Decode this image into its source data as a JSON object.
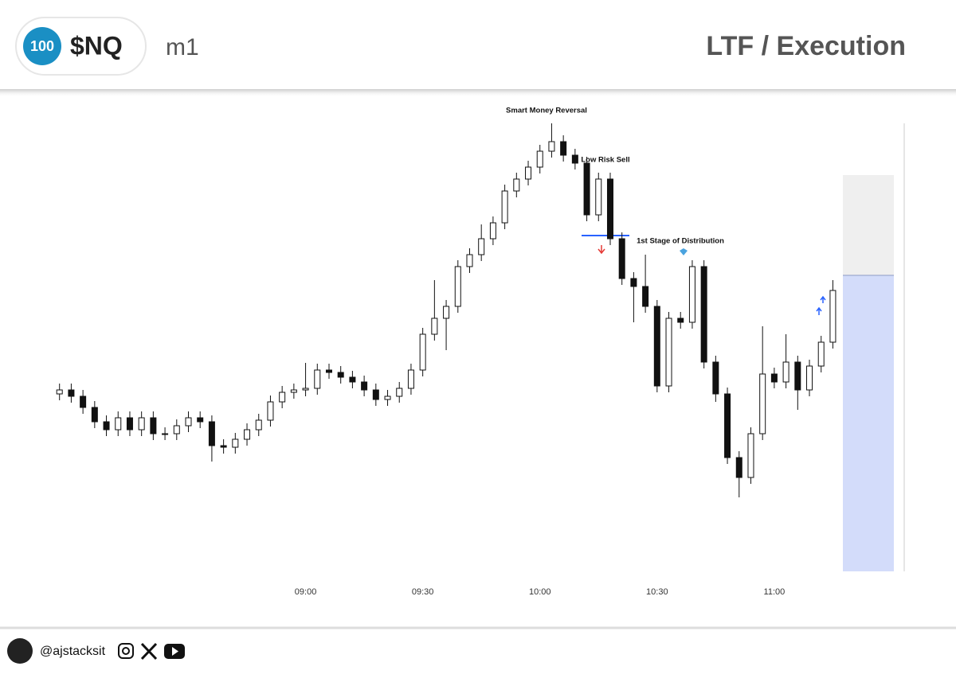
{
  "header": {
    "badge": "100",
    "symbol": "$NQ",
    "timeframe": "m1",
    "title": "LTF / Execution"
  },
  "chart_data": {
    "type": "candlestick",
    "x": [
      477,
      480,
      483,
      486,
      489,
      492,
      495,
      498,
      501,
      504,
      507,
      510,
      513,
      516,
      519,
      522,
      525,
      528,
      531,
      534,
      537,
      540,
      543,
      546,
      549,
      552,
      555,
      558,
      561,
      564,
      567,
      570,
      573,
      576,
      579,
      582,
      585,
      588,
      591,
      594,
      597,
      600,
      603,
      606,
      609,
      612,
      615,
      618,
      621,
      624,
      627,
      630,
      633,
      636,
      639,
      642,
      645,
      648,
      651,
      654,
      657,
      660,
      663,
      666,
      669,
      672,
      675
    ],
    "open": [
      225,
      230,
      222,
      208,
      190,
      180,
      195,
      180,
      195,
      175,
      175,
      185,
      195,
      190,
      160,
      158,
      168,
      180,
      192,
      215,
      227,
      230,
      232,
      255,
      252,
      246,
      240,
      230,
      218,
      222,
      232,
      255,
      300,
      320,
      335,
      385,
      400,
      420,
      440,
      480,
      495,
      510,
      530,
      542,
      525,
      515,
      450,
      495,
      420,
      370,
      360,
      335,
      235,
      320,
      315,
      385,
      265,
      225,
      145,
      120,
      175,
      250,
      240,
      265,
      230,
      260,
      290
    ],
    "high": [
      238,
      238,
      230,
      216,
      198,
      203,
      203,
      203,
      203,
      183,
      193,
      203,
      203,
      198,
      168,
      176,
      188,
      200,
      223,
      235,
      238,
      264,
      263,
      263,
      260,
      254,
      248,
      238,
      230,
      240,
      263,
      308,
      368,
      343,
      393,
      408,
      438,
      448,
      488,
      503,
      518,
      538,
      565,
      550,
      533,
      523,
      503,
      503,
      428,
      378,
      400,
      343,
      328,
      328,
      393,
      393,
      273,
      233,
      153,
      183,
      310,
      258,
      300,
      273,
      268,
      298,
      368
    ],
    "low": [
      217,
      214,
      200,
      182,
      172,
      172,
      172,
      172,
      167,
      167,
      167,
      177,
      182,
      140,
      150,
      150,
      160,
      172,
      184,
      207,
      219,
      222,
      224,
      244,
      238,
      232,
      222,
      210,
      210,
      214,
      224,
      247,
      292,
      280,
      327,
      377,
      392,
      412,
      432,
      472,
      487,
      502,
      522,
      517,
      507,
      442,
      442,
      412,
      362,
      315,
      327,
      227,
      227,
      307,
      307,
      257,
      215,
      137,
      95,
      112,
      167,
      232,
      232,
      205,
      222,
      252,
      282
    ],
    "close": [
      230,
      222,
      208,
      190,
      180,
      195,
      180,
      195,
      175,
      175,
      185,
      195,
      190,
      160,
      158,
      168,
      180,
      192,
      215,
      227,
      230,
      232,
      255,
      252,
      246,
      240,
      230,
      218,
      222,
      232,
      255,
      300,
      320,
      335,
      385,
      400,
      420,
      440,
      480,
      495,
      510,
      530,
      542,
      525,
      515,
      450,
      495,
      420,
      370,
      360,
      335,
      235,
      320,
      315,
      385,
      265,
      225,
      145,
      120,
      175,
      250,
      240,
      265,
      230,
      260,
      290,
      355
    ],
    "xlim": [
      474,
      700
    ],
    "xticks": [
      {
        "value": 540,
        "label": "09:00"
      },
      {
        "value": 570,
        "label": "09:30"
      },
      {
        "value": 600,
        "label": "10:00"
      },
      {
        "value": 630,
        "label": "10:30"
      },
      {
        "value": 660,
        "label": "11:00"
      }
    ],
    "ylim": [
      0,
      565
    ],
    "colors": {
      "up": "#ffffff",
      "down": "#111111"
    },
    "annotations": [
      "Smart Money Reversal",
      "Low Risk Sell",
      "1st Stage of Distribution"
    ]
  },
  "footer": {
    "handle": "@ajstacksit"
  }
}
